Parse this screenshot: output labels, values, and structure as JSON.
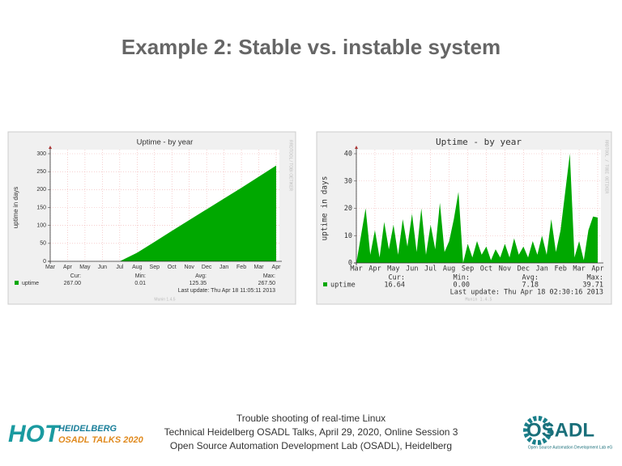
{
  "slide": {
    "title": "Example 2: Stable vs. instable system",
    "footer": [
      "Trouble shooting of real-time Linux",
      "Technical Heidelberg OSADL Talks, April 29, 2020, Online Session 3",
      "Open Source Automation Development Lab (OSADL), Heidelberg"
    ],
    "logo_left": {
      "big": "HOT",
      "line1": "HEIDELBERG",
      "line2": "OSADL TALKS 2020"
    },
    "logo_right": {
      "big": "OSADL",
      "small": "Open Source Automation Development Lab eG"
    }
  },
  "chart_data": [
    {
      "type": "area",
      "title": "Uptime - by year",
      "y_label": "uptime in days",
      "categories": [
        "Mar",
        "Apr",
        "May",
        "Jun",
        "Jul",
        "Aug",
        "Sep",
        "Oct",
        "Nov",
        "Dec",
        "Jan",
        "Feb",
        "Mar",
        "Apr"
      ],
      "series": [
        {
          "name": "uptime",
          "color": "#00a800",
          "values": [
            0,
            0,
            0,
            0,
            0,
            24,
            54,
            85,
            115,
            145,
            175,
            205,
            236,
            267
          ]
        }
      ],
      "ylim": [
        0,
        300
      ],
      "yticks": [
        0,
        50,
        100,
        150,
        200,
        250,
        300
      ],
      "grid": true,
      "stats": [
        {
          "label": "Cur:",
          "value": "267.00"
        },
        {
          "label": "Min:",
          "value": "0.01"
        },
        {
          "label": "Avg:",
          "value": "125.35"
        },
        {
          "label": "Max:",
          "value": "267.50"
        }
      ],
      "last_update": "Last update: Thu Apr 18 11:05:11 2013",
      "watermark": "RRDTOOL / TOBI OETIKER",
      "version": "Munin 1.4.5"
    },
    {
      "type": "area",
      "title": "Uptime - by year",
      "y_label": "uptime in days",
      "categories": [
        "Mar",
        null,
        null,
        null,
        "Apr",
        null,
        null,
        null,
        "May",
        null,
        null,
        null,
        "Jun",
        null,
        null,
        null,
        "Jul",
        null,
        null,
        null,
        "Aug",
        null,
        null,
        null,
        "Sep",
        null,
        null,
        null,
        "Oct",
        null,
        null,
        null,
        "Nov",
        null,
        null,
        null,
        "Dec",
        null,
        null,
        null,
        "Jan",
        null,
        null,
        null,
        "Feb",
        null,
        null,
        null,
        "Mar",
        null,
        null,
        null,
        "Apr"
      ],
      "series": [
        {
          "name": "uptime",
          "color": "#00a800",
          "values": [
            0,
            10,
            20,
            3,
            12,
            2,
            15,
            5,
            14,
            3,
            16,
            6,
            18,
            4,
            20,
            3,
            14,
            5,
            22,
            4,
            8,
            16,
            26,
            0,
            7,
            2,
            8,
            3,
            6,
            1,
            5,
            2,
            7,
            2,
            9,
            3,
            6,
            2,
            8,
            3,
            10,
            3,
            16,
            4,
            12,
            26,
            40,
            2,
            8,
            1,
            12,
            17,
            16.64
          ]
        }
      ],
      "ylim": [
        0,
        40
      ],
      "yticks": [
        0,
        10,
        20,
        30,
        40
      ],
      "grid": true,
      "stats": [
        {
          "label": "Cur:",
          "value": "16.64"
        },
        {
          "label": "Min:",
          "value": "0.00"
        },
        {
          "label": "Avg:",
          "value": "7.18"
        },
        {
          "label": "Max:",
          "value": "39.71"
        }
      ],
      "last_update": "Last update: Thu Apr 18 02:30:16 2013",
      "watermark": "RRDTOOL / TOBI OETIKER",
      "version": "Munin 1.4.5"
    }
  ]
}
